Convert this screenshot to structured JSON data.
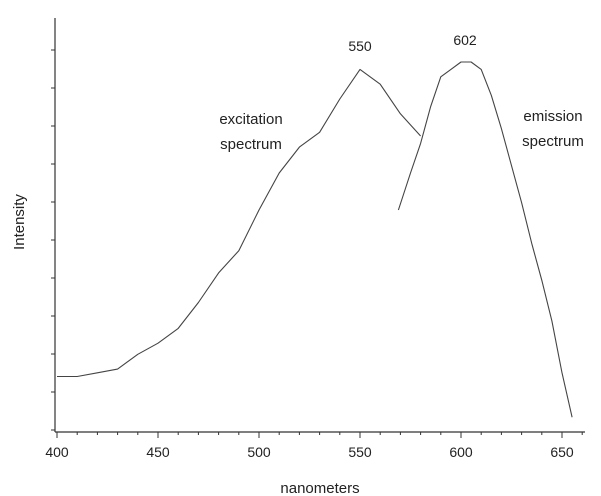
{
  "chart_data": {
    "type": "line",
    "xlabel": "nanometers",
    "ylabel": "Intensity",
    "xlim": [
      400,
      660
    ],
    "xticks": [
      400,
      450,
      500,
      550,
      600,
      650
    ],
    "ylim": [
      0,
      100
    ],
    "grid": false,
    "series": [
      {
        "x": [
          400,
          410,
          420,
          430,
          440,
          450,
          460,
          470,
          480,
          490,
          500,
          510,
          520,
          530,
          540,
          550,
          560,
          570,
          580
        ],
        "y": [
          15,
          15,
          16,
          17,
          21,
          24,
          28,
          35,
          43,
          49,
          60,
          70,
          77,
          81,
          90,
          98,
          94,
          86,
          80
        ]
      },
      {
        "x": [
          569,
          575,
          580,
          585,
          590,
          595,
          600,
          605,
          610,
          615,
          620,
          625,
          630,
          635,
          640,
          645,
          650,
          655
        ],
        "y": [
          60,
          70,
          78,
          88,
          96,
          98,
          100,
          100,
          98,
          91,
          82,
          72,
          62,
          51,
          41,
          30,
          16,
          4
        ]
      }
    ],
    "annotations": [
      {
        "text": "550",
        "x": 550,
        "kind": "peak"
      },
      {
        "text": "602",
        "x": 602,
        "kind": "peak"
      },
      {
        "lines": [
          "excitation",
          "spectrum"
        ],
        "kind": "label"
      },
      {
        "lines": [
          "emission",
          "spectrum"
        ],
        "kind": "label"
      }
    ]
  }
}
